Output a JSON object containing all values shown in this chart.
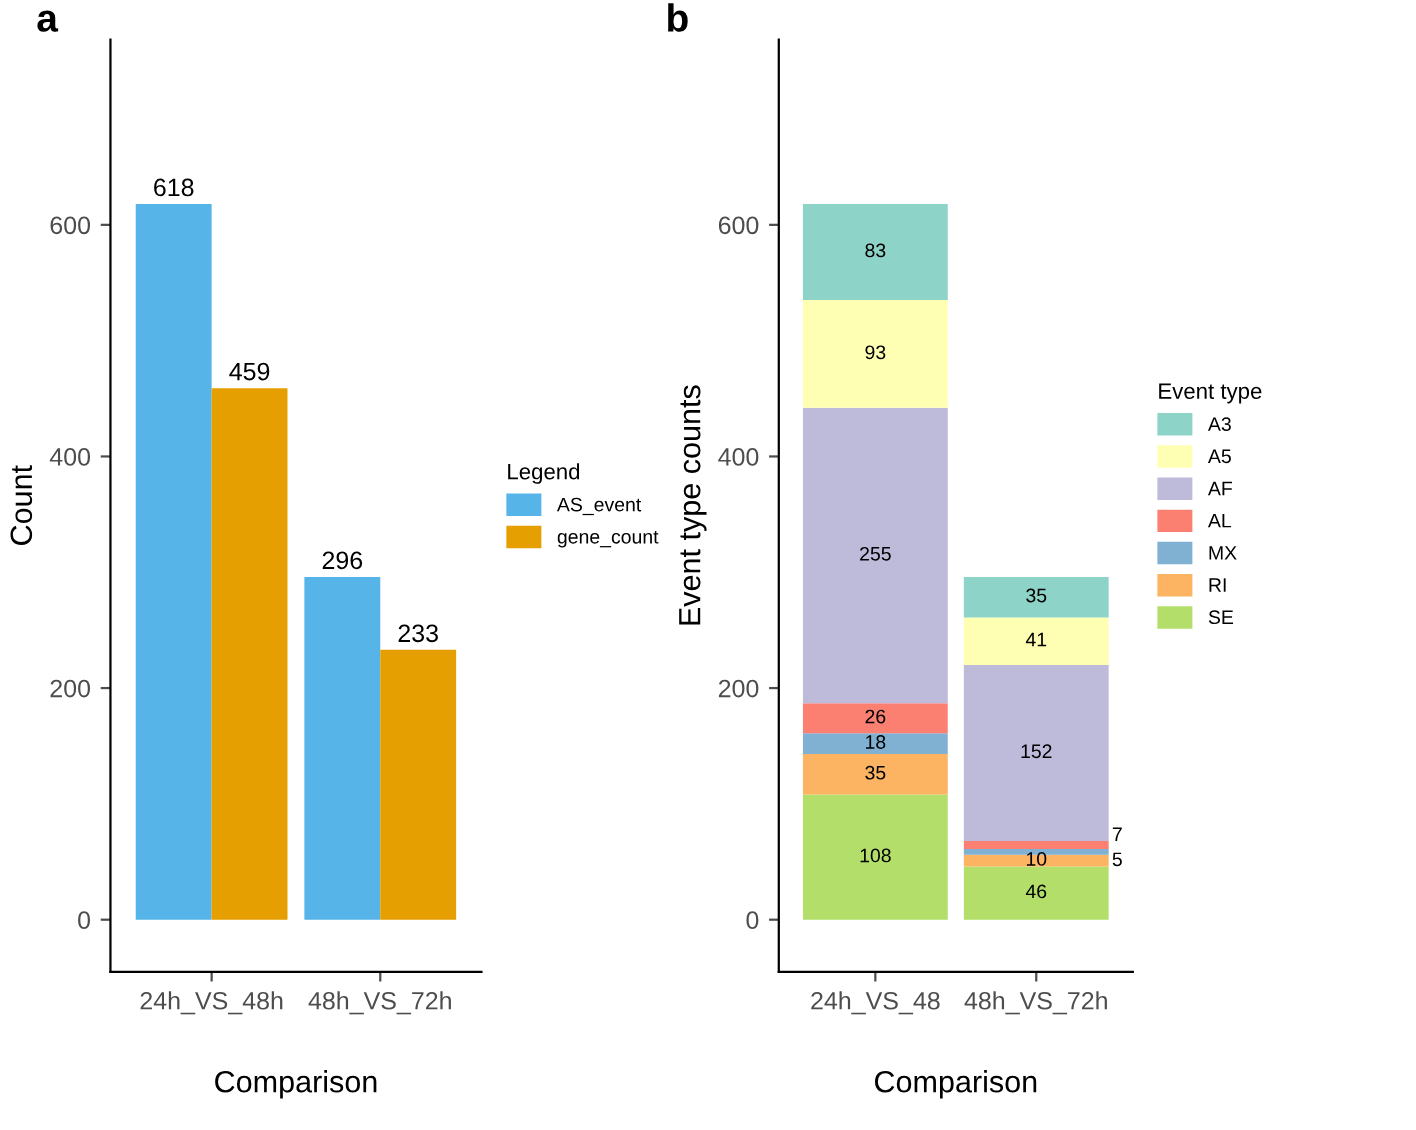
{
  "chart_data": [
    {
      "type": "bar",
      "annotations": [
        "a"
      ],
      "xlabel": "Comparison",
      "ylabel": "Count",
      "legend_title": "Legend",
      "legend": "right",
      "categories": [
        "24h_VS_48h",
        "48h_VS_72h"
      ],
      "series": [
        {
          "name": "AS_event",
          "color": "#56b4e9",
          "values": [
            618,
            296
          ]
        },
        {
          "name": "gene_count",
          "color": "#e69f00",
          "values": [
            459,
            233
          ]
        }
      ],
      "ylim": [
        -45,
        760
      ],
      "yticks": [
        0,
        200,
        400,
        600
      ],
      "data_labels": true,
      "grid": false
    },
    {
      "type": "bar",
      "annotations": [
        "b"
      ],
      "stacked": true,
      "xlabel": "Comparison",
      "ylabel": "Event type counts",
      "legend_title": "Event type",
      "legend": "right",
      "categories": [
        "24h_VS_48",
        "48h_VS_72h"
      ],
      "series": [
        {
          "name": "SE",
          "color": "#b3de69",
          "values": [
            108,
            46
          ]
        },
        {
          "name": "RI",
          "color": "#fdb462",
          "values": [
            35,
            10
          ]
        },
        {
          "name": "MX",
          "color": "#80b1d3",
          "values": [
            18,
            5
          ]
        },
        {
          "name": "AL",
          "color": "#fb8072",
          "values": [
            26,
            7
          ]
        },
        {
          "name": "AF",
          "color": "#bebada",
          "values": [
            255,
            152
          ]
        },
        {
          "name": "A5",
          "color": "#ffffb3",
          "values": [
            93,
            41
          ]
        },
        {
          "name": "A3",
          "color": "#8dd3c7",
          "values": [
            83,
            35
          ]
        }
      ],
      "ylim": [
        -45,
        760
      ],
      "yticks": [
        0,
        200,
        400,
        600
      ],
      "data_labels": true,
      "grid": false
    }
  ]
}
